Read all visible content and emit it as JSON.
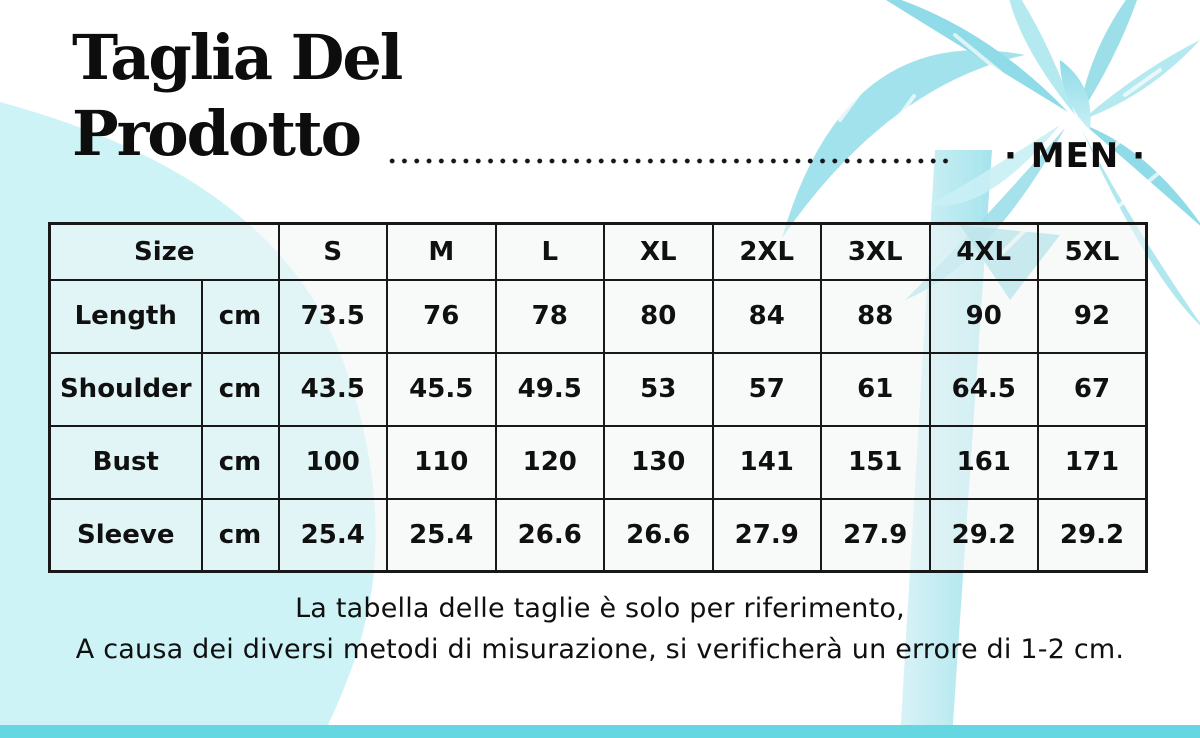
{
  "page": {
    "background_color": "#ffffff",
    "blob_color": "#cdf3f6",
    "palm_color_dark": "#8fdbe7",
    "palm_color_mid": "#a2e2ec",
    "palm_color_light": "#bdebf2",
    "bottom_bar_color": "#64d7e2",
    "text_color": "#101010"
  },
  "header": {
    "title_line1": "Taglia Del",
    "title_line2": "Prodotto",
    "gender_label": "· MEN ·"
  },
  "table": {
    "header": {
      "size_label": "Size",
      "sizes": [
        "S",
        "M",
        "L",
        "XL",
        "2XL",
        "3XL",
        "4XL",
        "5XL"
      ]
    },
    "rows": [
      {
        "label": "Length",
        "unit": "cm",
        "values": [
          "73.5",
          "76",
          "78",
          "80",
          "84",
          "88",
          "90",
          "92"
        ]
      },
      {
        "label": "Shoulder",
        "unit": "cm",
        "values": [
          "43.5",
          "45.5",
          "49.5",
          "53",
          "57",
          "61",
          "64.5",
          "67"
        ]
      },
      {
        "label": "Bust",
        "unit": "cm",
        "values": [
          "100",
          "110",
          "120",
          "130",
          "141",
          "151",
          "161",
          "171"
        ]
      },
      {
        "label": "Sleeve",
        "unit": "cm",
        "values": [
          "25.4",
          "25.4",
          "26.6",
          "26.6",
          "27.9",
          "27.9",
          "29.2",
          "29.2"
        ]
      }
    ]
  },
  "footer": {
    "line1": "La tabella delle taglie è solo per riferimento,",
    "line2": "A causa dei diversi metodi di misurazione, si verificherà un errore di 1-2 cm."
  },
  "chart_data": {
    "type": "table",
    "title": "Taglia Del Prodotto (MEN)",
    "unit": "cm",
    "columns": [
      "Size",
      "S",
      "M",
      "L",
      "XL",
      "2XL",
      "3XL",
      "4XL",
      "5XL"
    ],
    "rows": [
      {
        "measure": "Length",
        "values": [
          73.5,
          76,
          78,
          80,
          84,
          88,
          90,
          92
        ]
      },
      {
        "measure": "Shoulder",
        "values": [
          43.5,
          45.5,
          49.5,
          53,
          57,
          61,
          64.5,
          67
        ]
      },
      {
        "measure": "Bust",
        "values": [
          100,
          110,
          120,
          130,
          141,
          151,
          161,
          171
        ]
      },
      {
        "measure": "Sleeve",
        "values": [
          25.4,
          25.4,
          26.6,
          26.6,
          27.9,
          27.9,
          29.2,
          29.2
        ]
      }
    ],
    "note": "La tabella delle taglie è solo per riferimento, A causa dei diversi metodi di misurazione, si verificherà un errore di 1-2 cm."
  }
}
